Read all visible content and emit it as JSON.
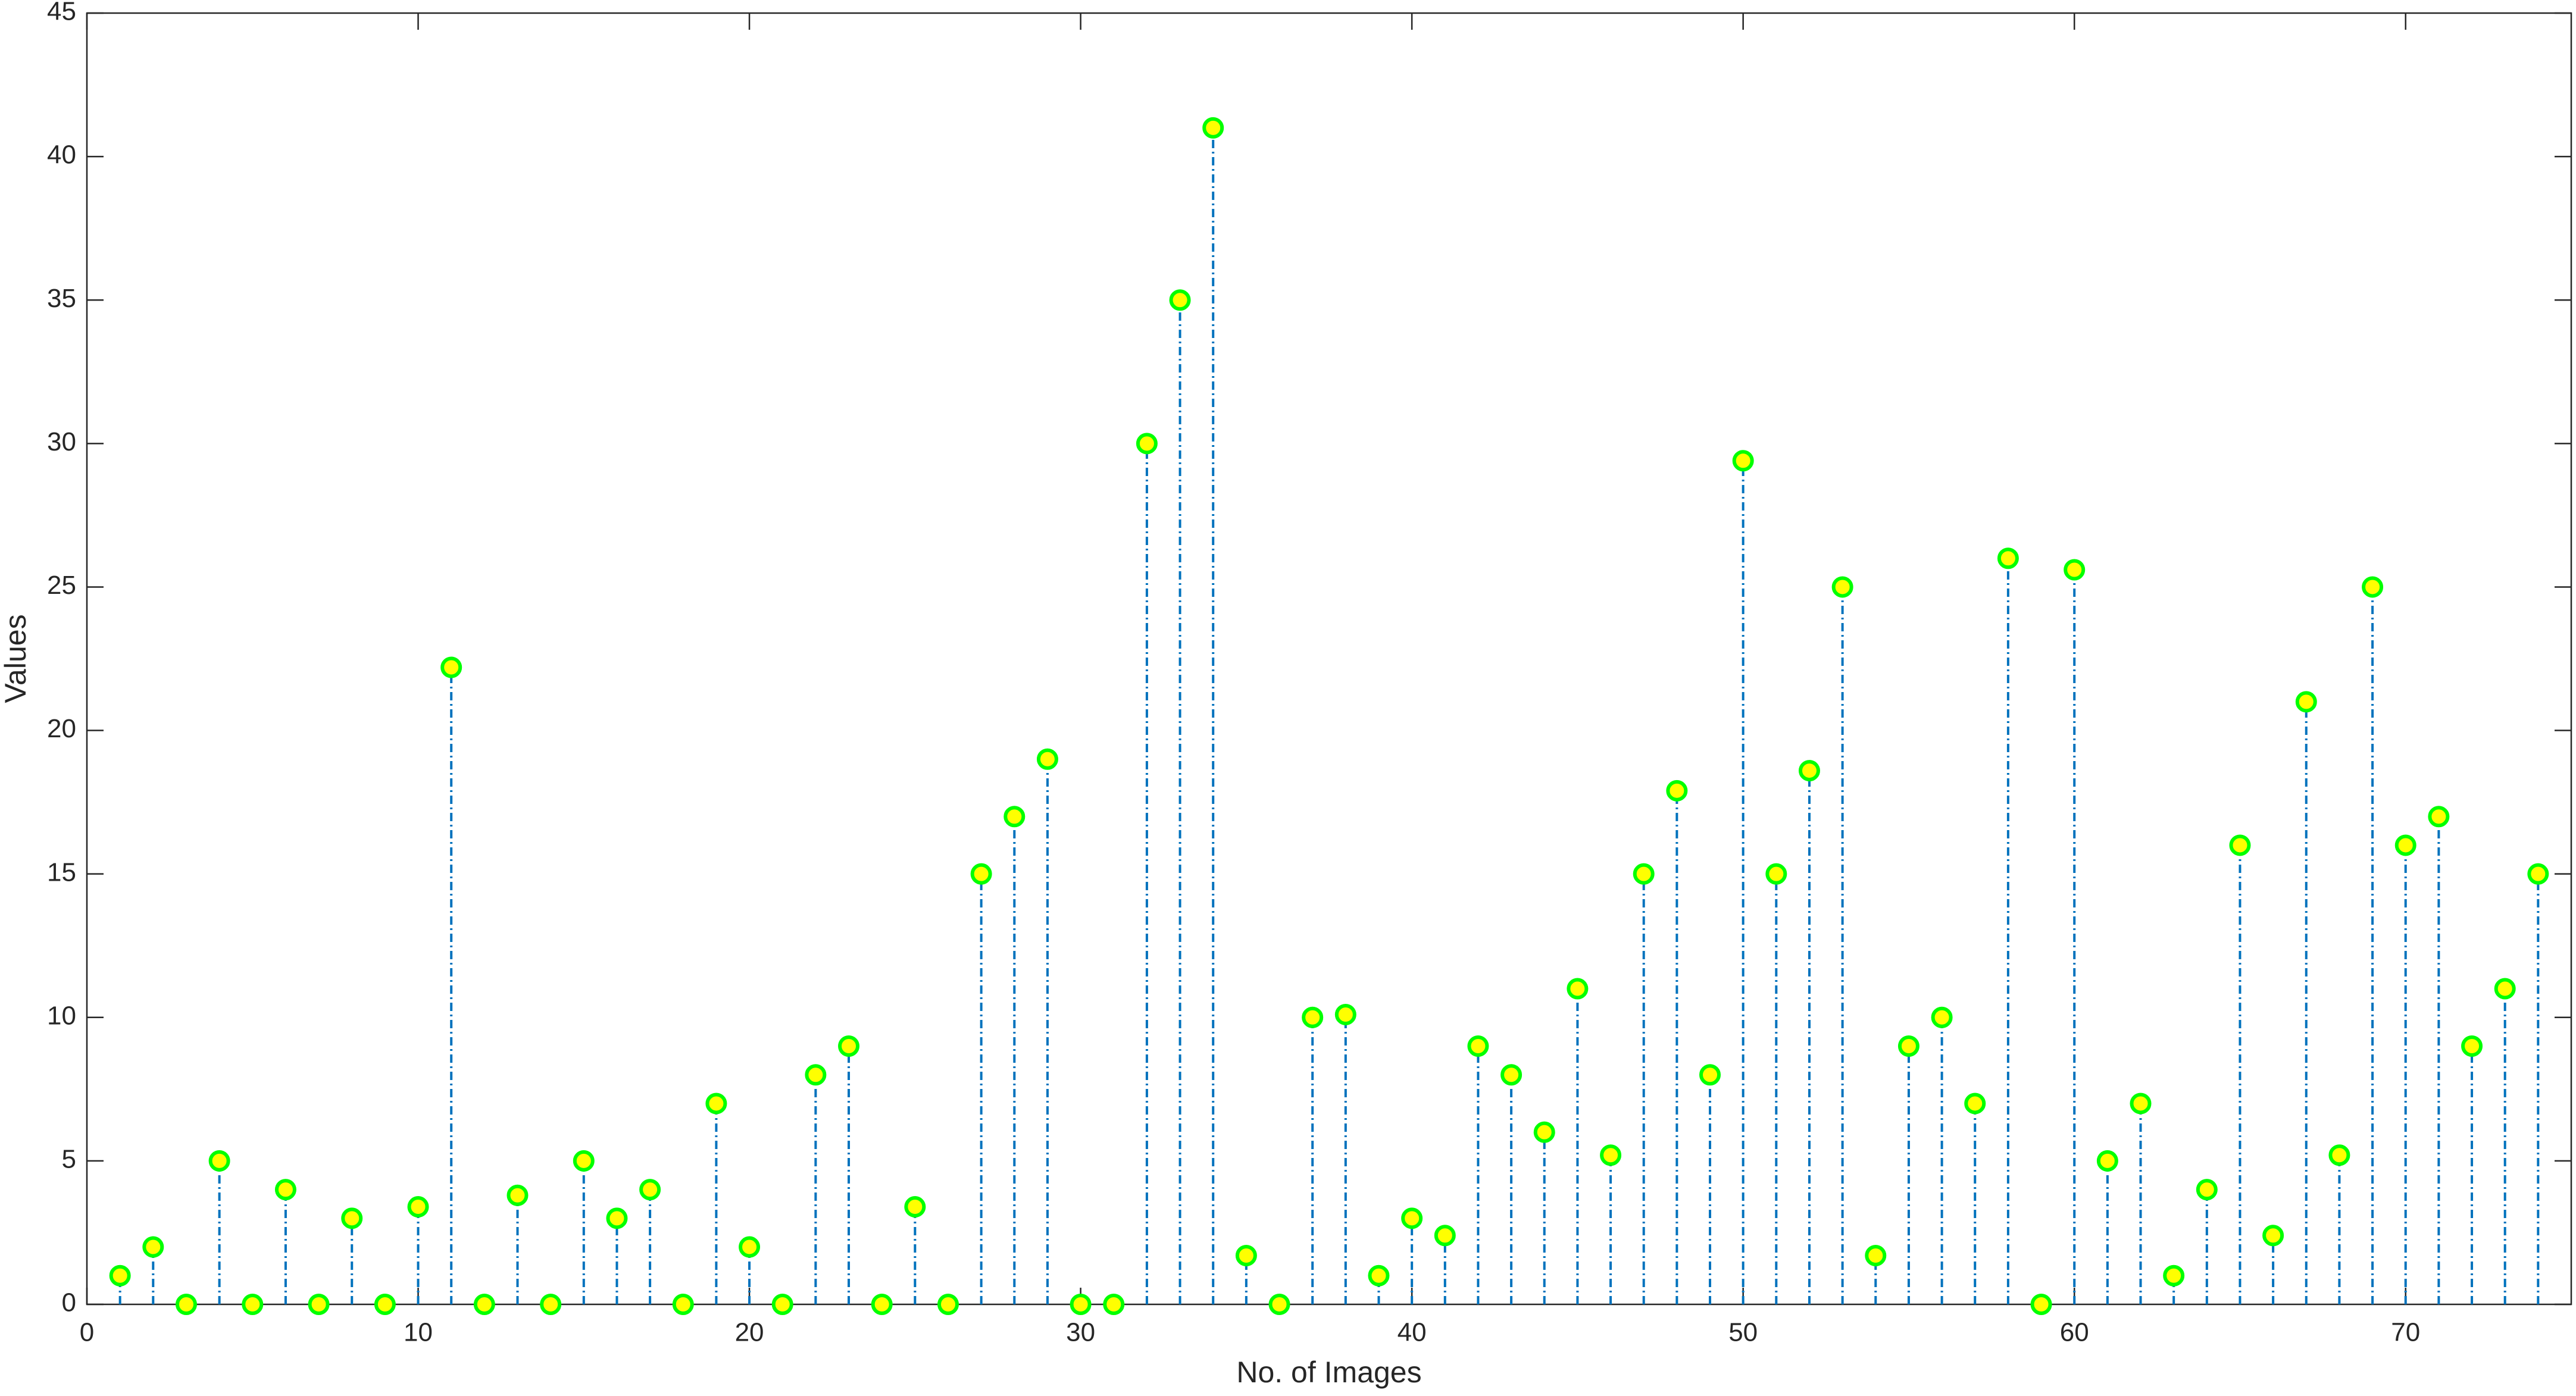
{
  "chart_data": {
    "type": "stem",
    "xlabel": "No. of Images",
    "ylabel": "Values",
    "x": [
      1,
      2,
      3,
      4,
      5,
      6,
      7,
      8,
      9,
      10,
      11,
      12,
      13,
      14,
      15,
      16,
      17,
      18,
      19,
      20,
      21,
      22,
      23,
      24,
      25,
      26,
      27,
      28,
      29,
      30,
      31,
      32,
      33,
      34,
      35,
      36,
      37,
      38,
      39,
      40,
      41,
      42,
      43,
      44,
      45,
      46,
      47,
      48,
      49,
      50,
      51,
      52,
      53,
      54,
      55,
      56,
      57,
      58,
      59,
      60,
      61,
      62,
      63,
      64,
      65,
      66,
      67,
      68,
      69,
      70,
      71,
      72,
      73,
      74
    ],
    "values": [
      1,
      2,
      0,
      5,
      0,
      4,
      0,
      3,
      0,
      3.4,
      22.2,
      0,
      3.8,
      0,
      5,
      3,
      4,
      0,
      7,
      2,
      0,
      8,
      9,
      0,
      3.4,
      0,
      15,
      17,
      19,
      0,
      0,
      30,
      35,
      41,
      1.7,
      0,
      10,
      10.1,
      1,
      3,
      2.4,
      9,
      8,
      6,
      11,
      5.2,
      15,
      17.9,
      8,
      29.4,
      15,
      18.6,
      25,
      1.7,
      9,
      10,
      7,
      26,
      0,
      25.6,
      5,
      7,
      1,
      4,
      16,
      2.4,
      21,
      5.2,
      25,
      16,
      17,
      9,
      11,
      15
    ],
    "color": "#0072bd",
    "marker_edge": "#00ff00",
    "marker_face": "#ffff00",
    "xlim": [
      0,
      75
    ],
    "ylim": [
      0,
      45
    ],
    "xticks": [
      0,
      10,
      20,
      30,
      40,
      50,
      60,
      70
    ],
    "yticks": [
      0,
      5,
      10,
      15,
      20,
      25,
      30,
      35,
      40,
      45
    ]
  }
}
